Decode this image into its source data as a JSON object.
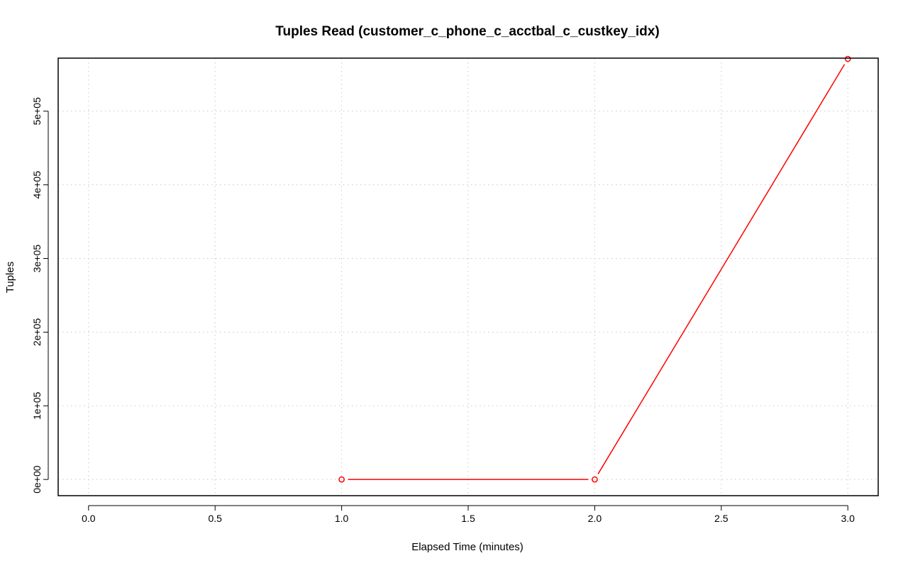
{
  "chart_data": {
    "type": "line",
    "title": "Tuples Read (customer_c_phone_c_acctbal_c_custkey_idx)",
    "xlabel": "Elapsed Time (minutes)",
    "ylabel": "Tuples",
    "xlim": [
      -0.12,
      3.12
    ],
    "ylim": [
      -22000,
      572000
    ],
    "x_ticks": [
      0.0,
      0.5,
      1.0,
      1.5,
      2.0,
      2.5,
      3.0
    ],
    "x_tick_labels": [
      "0.0",
      "0.5",
      "1.0",
      "1.5",
      "2.0",
      "2.5",
      "3.0"
    ],
    "y_ticks": [
      0,
      100000,
      200000,
      300000,
      400000,
      500000
    ],
    "y_tick_labels": [
      "0e+00",
      "1e+05",
      "2e+05",
      "3e+05",
      "4e+05",
      "5e+05"
    ],
    "grid": true,
    "series": [
      {
        "color": "#ff0000",
        "x": [
          1.0,
          2.0,
          3.0
        ],
        "values": [
          0,
          0,
          571000
        ],
        "marker": "open-circle"
      }
    ]
  }
}
